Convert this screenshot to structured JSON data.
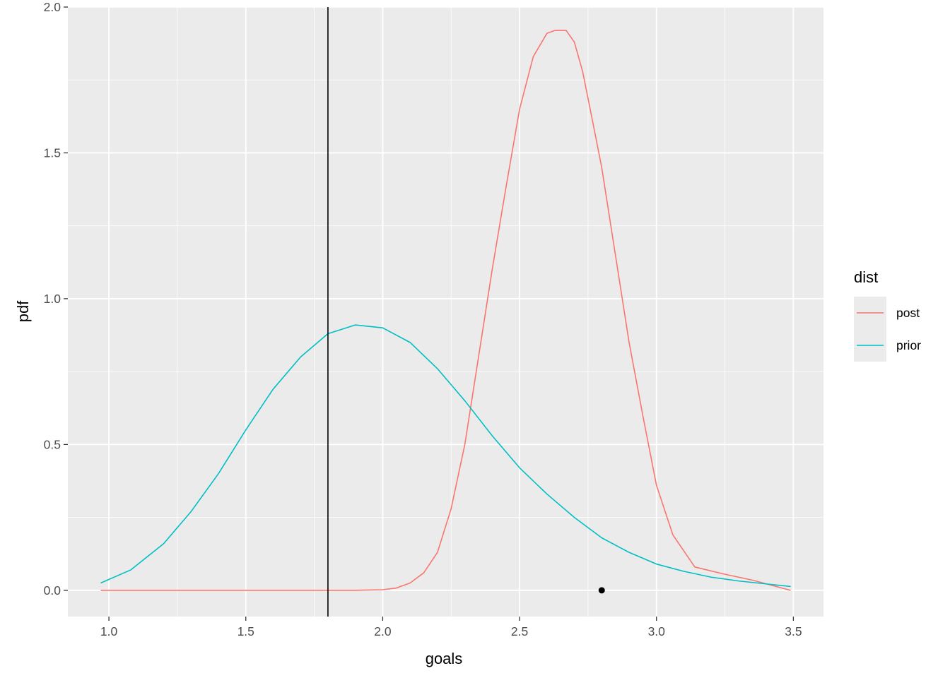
{
  "chart_data": {
    "type": "line",
    "title": "",
    "xlabel": "goals",
    "ylabel": "pdf",
    "xlim": [
      0.85,
      3.61
    ],
    "ylim": [
      -0.09,
      2.0
    ],
    "x_ticks": [
      1.0,
      1.5,
      2.0,
      2.5,
      3.0,
      3.5
    ],
    "x_tick_labels": [
      "1.0",
      "1.5",
      "2.0",
      "2.5",
      "3.0",
      "3.5"
    ],
    "y_ticks": [
      0.0,
      0.5,
      1.0,
      1.5,
      2.0
    ],
    "y_tick_labels": [
      "0.0",
      "0.5",
      "1.0",
      "1.5",
      "2.0"
    ],
    "grid": true,
    "panel_background": "#EBEBEB",
    "grid_color": "#FFFFFF",
    "legend": {
      "title": "dist",
      "placement": "right",
      "entries": [
        {
          "label": "post",
          "color": "#F8766D"
        },
        {
          "label": "prior",
          "color": "#00BFC4"
        }
      ]
    },
    "series": [
      {
        "name": "post",
        "color": "#F8766D",
        "x": [
          0.97,
          1.2,
          1.5,
          1.7,
          1.9,
          2.0,
          2.05,
          2.1,
          2.15,
          2.2,
          2.25,
          2.3,
          2.35,
          2.4,
          2.45,
          2.5,
          2.55,
          2.6,
          2.63,
          2.67,
          2.7,
          2.73,
          2.76,
          2.8,
          2.85,
          2.9,
          2.95,
          3.0,
          3.06,
          3.14,
          3.25,
          3.35,
          3.49
        ],
        "y": [
          0.0,
          0.0,
          0.0,
          0.0,
          0.0,
          0.002,
          0.008,
          0.025,
          0.06,
          0.13,
          0.28,
          0.5,
          0.8,
          1.1,
          1.38,
          1.65,
          1.83,
          1.91,
          1.92,
          1.92,
          1.88,
          1.78,
          1.64,
          1.45,
          1.15,
          0.85,
          0.6,
          0.36,
          0.19,
          0.08,
          0.055,
          0.035,
          0.0
        ]
      },
      {
        "name": "prior",
        "color": "#00BFC4",
        "x": [
          0.97,
          1.08,
          1.2,
          1.3,
          1.4,
          1.5,
          1.6,
          1.7,
          1.8,
          1.9,
          2.0,
          2.1,
          2.2,
          2.3,
          2.4,
          2.5,
          2.6,
          2.7,
          2.8,
          2.9,
          3.0,
          3.1,
          3.2,
          3.3,
          3.4,
          3.49
        ],
        "y": [
          0.025,
          0.07,
          0.16,
          0.27,
          0.4,
          0.55,
          0.69,
          0.8,
          0.88,
          0.91,
          0.9,
          0.85,
          0.76,
          0.65,
          0.53,
          0.42,
          0.33,
          0.25,
          0.18,
          0.13,
          0.09,
          0.065,
          0.045,
          0.032,
          0.022,
          0.013
        ]
      }
    ],
    "vline": {
      "x": 1.8,
      "color": "#000000"
    },
    "point": {
      "x": 2.8,
      "y": 0.0,
      "color": "#000000"
    }
  }
}
